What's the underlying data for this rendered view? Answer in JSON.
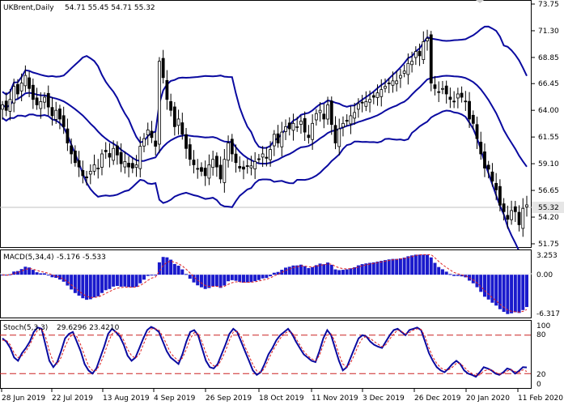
{
  "header": {
    "symbol": "UKBrent,Daily",
    "ohlc": "54.71 55.45 54.71 55.32"
  },
  "price_axis": {
    "ticks": [
      "73.75",
      "71.30",
      "68.85",
      "66.45",
      "64.00",
      "61.55",
      "59.10",
      "56.65",
      "54.20",
      "51.75"
    ],
    "last_price": "55.32"
  },
  "macd": {
    "title": "MACD(5,34,4)",
    "values": "-5.176 -5.533",
    "ticks": [
      "3.253",
      "0.00",
      "-6.317"
    ]
  },
  "stoch": {
    "title": "Stoch(5,3,3)",
    "values": "29.6296 23.4210",
    "ticks": [
      "100",
      "80",
      "20",
      "0"
    ]
  },
  "x_axis": {
    "dates": [
      "28 Jun 2019",
      "22 Jul 2019",
      "13 Aug 2019",
      "4 Sep 2019",
      "26 Sep 2019",
      "18 Oct 2019",
      "11 Nov 2019",
      "3 Dec 2019",
      "26 Dec 2019",
      "20 Jan 2020",
      "11 Feb 2020"
    ]
  },
  "colors": {
    "bands": "#0a0aa0",
    "macd_hist": "#1a1acc",
    "signal": "#dd2222",
    "stoch_main": "#0a0aa0",
    "stoch_levels": "#cc2222",
    "last_price_box": "#e6e6e6"
  },
  "chart_data": [
    {
      "type": "candlestick",
      "title": "UKBrent,Daily",
      "ylim": [
        51.75,
        73.75
      ],
      "close": [
        64.5,
        64.0,
        65.0,
        66.2,
        65.5,
        66.5,
        67.2,
        66.0,
        65.0,
        64.5,
        64.8,
        65.2,
        64.3,
        63.5,
        64.0,
        63.2,
        62.5,
        61.0,
        60.0,
        59.2,
        58.8,
        58.0,
        57.8,
        58.4,
        59.0,
        58.7,
        60.0,
        60.2,
        59.7,
        60.5,
        59.9,
        59.1,
        59.3,
        58.8,
        58.7,
        59.0,
        60.7,
        61.4,
        62.2,
        61.5,
        60.7,
        68.5,
        67.0,
        65.0,
        64.0,
        62.5,
        63.2,
        61.8,
        60.5,
        59.5,
        59.0,
        58.6,
        58.4,
        58.0,
        59.0,
        59.5,
        58.8,
        57.7,
        59.5,
        61.0,
        60.0,
        59.2,
        58.7,
        58.6,
        58.9,
        58.9,
        59.3,
        59.5,
        60.0,
        59.6,
        60.4,
        61.8,
        61.0,
        62.0,
        62.5,
        62.3,
        62.8,
        62.5,
        63.0,
        62.0,
        61.5,
        62.8,
        63.7,
        64.0,
        63.2,
        64.5,
        62.7,
        61.0,
        62.3,
        62.8,
        63.0,
        63.5,
        63.8,
        64.6,
        64.7,
        64.8,
        65.0,
        65.2,
        65.6,
        65.9,
        66.2,
        66.5,
        66.7,
        66.7,
        67.2,
        67.6,
        68.3,
        68.5,
        69.4,
        69.0,
        70.3,
        70.6,
        66.5,
        66.0,
        65.7,
        66.0,
        65.5,
        65.0,
        64.8,
        65.5,
        65.2,
        64.8,
        63.2,
        62.8,
        61.4,
        60.0,
        58.7,
        58.6,
        57.5,
        56.7,
        55.3,
        54.7,
        54.0,
        54.8,
        54.7,
        53.5,
        55.0,
        55.32
      ]
    },
    {
      "type": "bar",
      "title": "MACD(5,34,4)",
      "ylim": [
        -6.317,
        3.253
      ]
    },
    {
      "type": "line",
      "title": "Stoch(5,3,3)",
      "ylim": [
        0,
        100
      ],
      "series": [
        {
          "values": [
            75,
            70,
            60,
            45,
            40,
            52,
            60,
            70,
            85,
            92,
            90,
            65,
            40,
            30,
            38,
            55,
            75,
            82,
            85,
            70,
            55,
            35,
            25,
            20,
            28,
            45,
            62,
            82,
            90,
            85,
            78,
            65,
            48,
            40,
            45,
            60,
            75,
            88,
            93,
            90,
            85,
            70,
            55,
            45,
            40,
            35,
            50,
            70,
            85,
            88,
            80,
            60,
            40,
            30,
            28,
            35,
            50,
            65,
            82,
            90,
            85,
            70,
            55,
            40,
            25,
            18,
            22,
            35,
            50,
            60,
            72,
            80,
            85,
            90,
            82,
            70,
            60,
            50,
            45,
            40,
            38,
            55,
            75,
            88,
            80,
            60,
            40,
            25,
            30,
            45,
            60,
            75,
            80,
            78,
            70,
            65,
            62,
            60,
            70,
            80,
            88,
            90,
            85,
            80,
            88,
            90,
            92,
            88,
            70,
            52,
            40,
            30,
            25,
            22,
            28,
            35,
            40,
            35,
            25,
            20,
            18,
            15,
            22,
            30,
            28,
            25,
            20,
            18,
            22,
            28,
            26,
            20,
            24,
            30,
            29.63
          ]
        },
        {
          "values": [
            72,
            72,
            65,
            52,
            45,
            48,
            55,
            65,
            78,
            88,
            90,
            78,
            55,
            38,
            35,
            45,
            62,
            75,
            82,
            78,
            65,
            48,
            32,
            25,
            25,
            35,
            50,
            68,
            82,
            86,
            82,
            72,
            58,
            48,
            44,
            50,
            65,
            80,
            90,
            90,
            88,
            78,
            65,
            52,
            45,
            40,
            44,
            58,
            75,
            84,
            82,
            70,
            52,
            38,
            32,
            32,
            42,
            55,
            72,
            85,
            86,
            78,
            62,
            48,
            34,
            24,
            22,
            28,
            42,
            55,
            65,
            75,
            82,
            86,
            84,
            75,
            65,
            55,
            48,
            43,
            40,
            48,
            65,
            80,
            82,
            70,
            50,
            35,
            30,
            37,
            50,
            65,
            75,
            78,
            75,
            70,
            66,
            62,
            65,
            74,
            82,
            88,
            86,
            82,
            84,
            88,
            90,
            89,
            78,
            60,
            46,
            36,
            29,
            26,
            26,
            30,
            36,
            36,
            30,
            24,
            20,
            17,
            18,
            24,
            26,
            26,
            22,
            19,
            20,
            24,
            26,
            23,
            22,
            26,
            23.42
          ]
        }
      ]
    }
  ]
}
